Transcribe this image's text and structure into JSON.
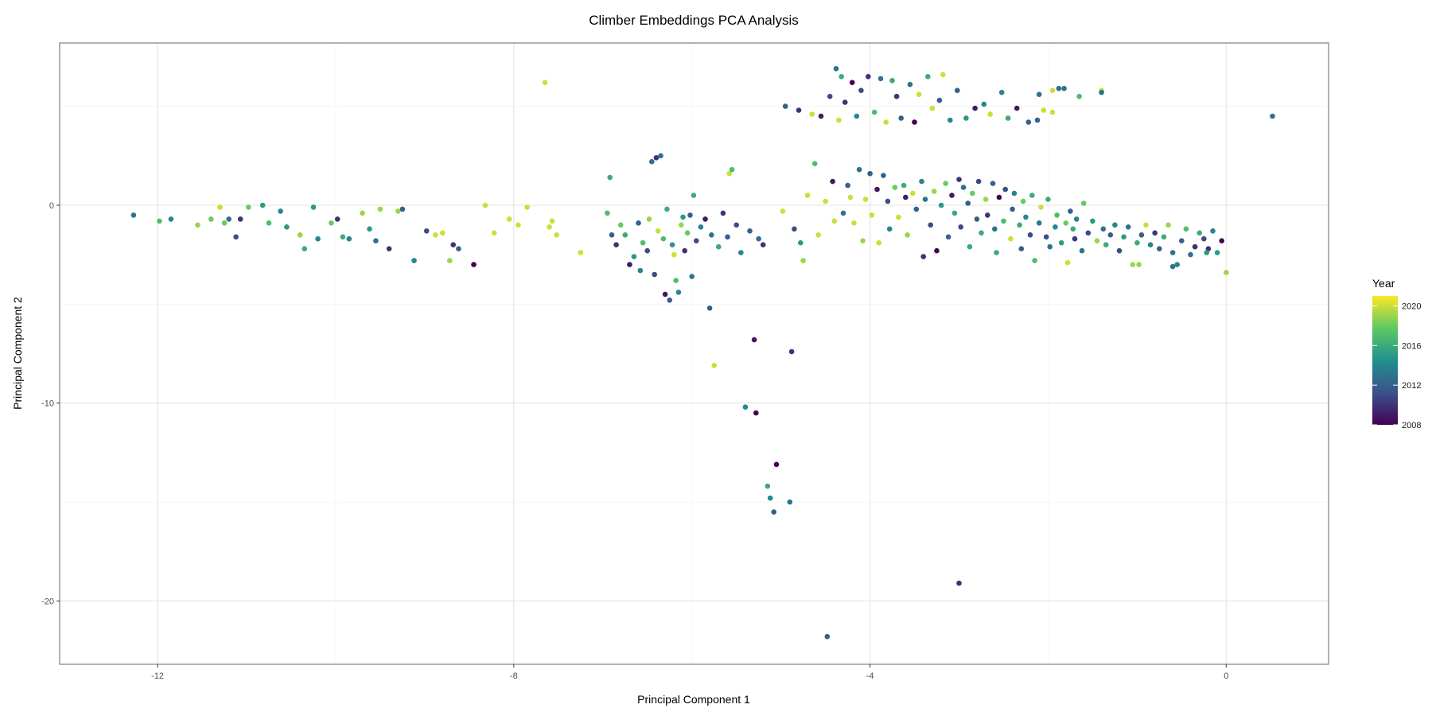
{
  "chart_data": {
    "type": "scatter",
    "title": "Climber Embeddings PCA Analysis",
    "xlabel": "Principal Component 1",
    "ylabel": "Principal Component 2",
    "xlim": [
      -13.1,
      1.15
    ],
    "ylim": [
      -23.2,
      8.2
    ],
    "x_ticks": [
      -12,
      -8,
      -4,
      0
    ],
    "y_ticks": [
      0,
      -10,
      -20
    ],
    "x_tick_labels": [
      "-12",
      "-8",
      "-4",
      "0"
    ],
    "y_tick_labels": [
      "0",
      "-10",
      "-20"
    ],
    "grid": true,
    "legend": {
      "title": "Year",
      "position": "right",
      "type": "colorbar",
      "colormap": "viridis",
      "range": [
        2008,
        2021
      ],
      "breaks": [
        2008,
        2012,
        2016,
        2020
      ],
      "labels": [
        "2008",
        "2012",
        "2016",
        "2020"
      ],
      "colors": [
        "#440154",
        "#3b528b",
        "#21908d",
        "#5dc963",
        "#fde725"
      ]
    },
    "points": [
      [
        -12.27,
        -0.5,
        2013
      ],
      [
        -11.98,
        -0.8,
        2017
      ],
      [
        -11.85,
        -0.7,
        2014
      ],
      [
        -11.55,
        -1.0,
        2019
      ],
      [
        -11.4,
        -0.7,
        2018
      ],
      [
        -11.3,
        -0.1,
        2020
      ],
      [
        -11.25,
        -0.9,
        2018
      ],
      [
        -11.2,
        -0.7,
        2013
      ],
      [
        -11.12,
        -1.6,
        2011
      ],
      [
        -11.07,
        -0.7,
        2010
      ],
      [
        -10.98,
        -0.1,
        2018
      ],
      [
        -10.82,
        0.0,
        2015
      ],
      [
        -10.75,
        -0.9,
        2017
      ],
      [
        -10.62,
        -0.3,
        2014
      ],
      [
        -10.55,
        -1.1,
        2015
      ],
      [
        -10.4,
        -1.5,
        2019
      ],
      [
        -10.35,
        -2.2,
        2016
      ],
      [
        -10.25,
        -0.1,
        2015
      ],
      [
        -10.2,
        -1.7,
        2014
      ],
      [
        -10.05,
        -0.9,
        2018
      ],
      [
        -9.98,
        -0.7,
        2010
      ],
      [
        -9.92,
        -1.6,
        2016
      ],
      [
        -9.85,
        -1.7,
        2014
      ],
      [
        -9.7,
        -0.4,
        2019
      ],
      [
        -9.62,
        -1.2,
        2015
      ],
      [
        -9.55,
        -1.8,
        2013
      ],
      [
        -9.5,
        -0.2,
        2019
      ],
      [
        -9.4,
        -2.2,
        2010
      ],
      [
        -9.3,
        -0.3,
        2019
      ],
      [
        -9.25,
        -0.2,
        2012
      ],
      [
        -9.12,
        -2.8,
        2014
      ],
      [
        -8.98,
        -1.3,
        2011
      ],
      [
        -8.88,
        -1.5,
        2020
      ],
      [
        -8.8,
        -1.4,
        2020
      ],
      [
        -8.72,
        -2.8,
        2019
      ],
      [
        -8.68,
        -2.0,
        2010
      ],
      [
        -8.62,
        -2.2,
        2012
      ],
      [
        -8.45,
        -3.0,
        2008
      ],
      [
        -8.32,
        0.0,
        2020
      ],
      [
        -8.22,
        -1.4,
        2020
      ],
      [
        -8.05,
        -0.7,
        2020
      ],
      [
        -7.95,
        -1.0,
        2020
      ],
      [
        -7.85,
        -0.1,
        2020
      ],
      [
        -7.65,
        6.2,
        2020
      ],
      [
        -7.6,
        -1.1,
        2020
      ],
      [
        -7.57,
        -0.8,
        2020
      ],
      [
        -7.52,
        -1.5,
        2020
      ],
      [
        -7.25,
        -2.4,
        2020
      ],
      [
        -6.95,
        -0.4,
        2017
      ],
      [
        -6.92,
        1.4,
        2016
      ],
      [
        -6.9,
        -1.5,
        2012
      ],
      [
        -6.85,
        -2.0,
        2010
      ],
      [
        -6.8,
        -1.0,
        2018
      ],
      [
        -6.75,
        -1.5,
        2016
      ],
      [
        -6.7,
        -3.0,
        2009
      ],
      [
        -6.65,
        -2.6,
        2015
      ],
      [
        -6.6,
        -0.9,
        2012
      ],
      [
        -6.58,
        -3.3,
        2014
      ],
      [
        -6.55,
        -1.9,
        2017
      ],
      [
        -6.5,
        -2.3,
        2011
      ],
      [
        -6.48,
        -0.7,
        2019
      ],
      [
        -6.45,
        2.2,
        2013
      ],
      [
        -6.42,
        -3.5,
        2011
      ],
      [
        -6.4,
        2.4,
        2010
      ],
      [
        -6.38,
        -1.3,
        2020
      ],
      [
        -6.35,
        2.5,
        2013
      ],
      [
        -6.32,
        -1.7,
        2017
      ],
      [
        -6.3,
        -4.5,
        2009
      ],
      [
        -6.28,
        -0.2,
        2016
      ],
      [
        -6.25,
        -4.8,
        2012
      ],
      [
        -6.22,
        -2.0,
        2015
      ],
      [
        -6.2,
        -2.5,
        2020
      ],
      [
        -6.18,
        -3.8,
        2017
      ],
      [
        -6.15,
        -4.4,
        2014
      ],
      [
        -6.12,
        -1.0,
        2019
      ],
      [
        -6.1,
        -0.6,
        2015
      ],
      [
        -6.08,
        -2.3,
        2010
      ],
      [
        -6.05,
        -1.4,
        2018
      ],
      [
        -6.02,
        -0.5,
        2012
      ],
      [
        -6.0,
        -3.6,
        2013
      ],
      [
        -5.98,
        0.5,
        2016
      ],
      [
        -5.95,
        -1.8,
        2011
      ],
      [
        -5.9,
        -1.1,
        2014
      ],
      [
        -5.85,
        -0.7,
        2009
      ],
      [
        -5.8,
        -5.2,
        2012
      ],
      [
        -5.78,
        -1.5,
        2013
      ],
      [
        -5.75,
        -8.1,
        2020
      ],
      [
        -5.7,
        -2.1,
        2016
      ],
      [
        -5.65,
        -0.4,
        2010
      ],
      [
        -5.6,
        -1.6,
        2012
      ],
      [
        -5.58,
        1.6,
        2020
      ],
      [
        -5.55,
        1.8,
        2017
      ],
      [
        -5.5,
        -1.0,
        2011
      ],
      [
        -5.45,
        -2.4,
        2014
      ],
      [
        -5.4,
        -10.2,
        2014
      ],
      [
        -5.35,
        -1.3,
        2012
      ],
      [
        -5.3,
        -6.8,
        2009
      ],
      [
        -5.28,
        -10.5,
        2008
      ],
      [
        -5.25,
        -1.7,
        2013
      ],
      [
        -5.2,
        -2.0,
        2010
      ],
      [
        -5.15,
        -14.2,
        2016
      ],
      [
        -5.12,
        -14.8,
        2014
      ],
      [
        -5.08,
        -15.5,
        2012
      ],
      [
        -5.05,
        -13.1,
        2008
      ],
      [
        -4.98,
        -0.3,
        2020
      ],
      [
        -4.95,
        5.0,
        2012
      ],
      [
        -4.9,
        -15.0,
        2013
      ],
      [
        -4.88,
        -7.4,
        2010
      ],
      [
        -4.85,
        -1.2,
        2011
      ],
      [
        -4.8,
        4.8,
        2010
      ],
      [
        -4.78,
        -1.9,
        2015
      ],
      [
        -4.75,
        -2.8,
        2019
      ],
      [
        -4.7,
        0.5,
        2020
      ],
      [
        -4.65,
        4.6,
        2020
      ],
      [
        -4.62,
        2.1,
        2017
      ],
      [
        -4.58,
        -1.5,
        2020
      ],
      [
        -4.55,
        4.5,
        2009
      ],
      [
        -4.5,
        0.2,
        2020
      ],
      [
        -4.48,
        -21.8,
        2012
      ],
      [
        -4.45,
        5.5,
        2011
      ],
      [
        -4.42,
        1.2,
        2009
      ],
      [
        -4.4,
        -0.8,
        2020
      ],
      [
        -4.38,
        6.9,
        2013
      ],
      [
        -4.35,
        4.3,
        2020
      ],
      [
        -4.32,
        6.5,
        2016
      ],
      [
        -4.3,
        -0.4,
        2013
      ],
      [
        -4.28,
        5.2,
        2010
      ],
      [
        -4.25,
        1.0,
        2012
      ],
      [
        -4.22,
        0.4,
        2020
      ],
      [
        -4.2,
        6.2,
        2008
      ],
      [
        -4.18,
        -0.9,
        2020
      ],
      [
        -4.15,
        4.5,
        2014
      ],
      [
        -4.12,
        1.8,
        2013
      ],
      [
        -4.1,
        5.8,
        2011
      ],
      [
        -4.08,
        -1.8,
        2019
      ],
      [
        -4.05,
        0.3,
        2020
      ],
      [
        -4.02,
        6.5,
        2010
      ],
      [
        -4.0,
        1.6,
        2012
      ],
      [
        -3.98,
        -0.5,
        2020
      ],
      [
        -3.95,
        4.7,
        2017
      ],
      [
        -3.92,
        0.8,
        2009
      ],
      [
        -3.9,
        -1.9,
        2020
      ],
      [
        -3.88,
        6.4,
        2013
      ],
      [
        -3.85,
        1.5,
        2012
      ],
      [
        -3.82,
        4.2,
        2020
      ],
      [
        -3.8,
        0.2,
        2011
      ],
      [
        -3.78,
        -1.2,
        2014
      ],
      [
        -3.75,
        6.3,
        2016
      ],
      [
        -3.72,
        0.9,
        2018
      ],
      [
        -3.7,
        5.5,
        2010
      ],
      [
        -3.68,
        -0.6,
        2020
      ],
      [
        -3.65,
        4.4,
        2012
      ],
      [
        -3.62,
        1.0,
        2016
      ],
      [
        -3.6,
        0.4,
        2009
      ],
      [
        -3.58,
        -1.5,
        2019
      ],
      [
        -3.55,
        6.1,
        2013
      ],
      [
        -3.52,
        0.6,
        2020
      ],
      [
        -3.5,
        4.2,
        2008
      ],
      [
        -3.48,
        -0.2,
        2012
      ],
      [
        -3.45,
        5.6,
        2020
      ],
      [
        -3.42,
        1.2,
        2014
      ],
      [
        -3.4,
        -2.6,
        2010
      ],
      [
        -3.38,
        0.3,
        2013
      ],
      [
        -3.35,
        6.5,
        2016
      ],
      [
        -3.32,
        -1.0,
        2011
      ],
      [
        -3.3,
        4.9,
        2020
      ],
      [
        -3.28,
        0.7,
        2019
      ],
      [
        -3.25,
        -2.3,
        2008
      ],
      [
        -3.22,
        5.3,
        2012
      ],
      [
        -3.2,
        0.0,
        2015
      ],
      [
        -3.18,
        6.6,
        2020
      ],
      [
        -3.15,
        1.1,
        2018
      ],
      [
        -3.12,
        -1.6,
        2012
      ],
      [
        -3.1,
        4.3,
        2014
      ],
      [
        -3.08,
        0.5,
        2009
      ],
      [
        -3.05,
        -0.4,
        2016
      ],
      [
        -3.02,
        5.8,
        2012
      ],
      [
        -3.0,
        1.3,
        2010
      ],
      [
        -2.98,
        -1.1,
        2011
      ],
      [
        -2.95,
        0.9,
        2013
      ],
      [
        -2.92,
        4.4,
        2015
      ],
      [
        -2.9,
        0.1,
        2012
      ],
      [
        -2.88,
        -2.1,
        2016
      ],
      [
        -2.85,
        0.6,
        2018
      ],
      [
        -2.82,
        4.9,
        2009
      ],
      [
        -2.8,
        -0.7,
        2012
      ],
      [
        -2.78,
        1.2,
        2011
      ],
      [
        -2.75,
        -1.4,
        2016
      ],
      [
        -2.72,
        5.1,
        2014
      ],
      [
        -2.7,
        0.3,
        2019
      ],
      [
        -2.68,
        -0.5,
        2010
      ],
      [
        -2.65,
        4.6,
        2020
      ],
      [
        -2.62,
        1.1,
        2012
      ],
      [
        -2.6,
        -1.2,
        2013
      ],
      [
        -2.58,
        -2.4,
        2016
      ],
      [
        -2.55,
        0.4,
        2008
      ],
      [
        -2.52,
        5.7,
        2014
      ],
      [
        -2.5,
        -0.8,
        2017
      ],
      [
        -2.48,
        0.8,
        2011
      ],
      [
        -2.45,
        4.4,
        2016
      ],
      [
        -2.42,
        -1.7,
        2020
      ],
      [
        -2.4,
        -0.2,
        2012
      ],
      [
        -2.38,
        0.6,
        2014
      ],
      [
        -2.35,
        4.9,
        2009
      ],
      [
        -2.32,
        -1.0,
        2016
      ],
      [
        -2.3,
        -2.2,
        2012
      ],
      [
        -2.28,
        0.2,
        2018
      ],
      [
        -2.25,
        -0.6,
        2014
      ],
      [
        -2.22,
        4.2,
        2012
      ],
      [
        -2.2,
        -1.5,
        2011
      ],
      [
        -2.18,
        0.5,
        2016
      ],
      [
        -2.15,
        -2.8,
        2017
      ],
      [
        -2.12,
        4.3,
        2012
      ],
      [
        -2.1,
        -0.9,
        2013
      ],
      [
        -2.08,
        -0.1,
        2020
      ],
      [
        -2.05,
        4.8,
        2020
      ],
      [
        -2.02,
        -1.6,
        2011
      ],
      [
        -2.0,
        0.3,
        2016
      ],
      [
        -1.98,
        -2.1,
        2013
      ],
      [
        -1.95,
        4.7,
        2020
      ],
      [
        -1.92,
        -1.1,
        2014
      ],
      [
        -1.9,
        -0.5,
        2017
      ],
      [
        -1.88,
        5.9,
        2013
      ],
      [
        -1.85,
        -1.9,
        2015
      ],
      [
        -1.82,
        5.9,
        2013
      ],
      [
        -1.8,
        -0.9,
        2018
      ],
      [
        -1.78,
        -2.9,
        2020
      ],
      [
        -1.75,
        -0.3,
        2012
      ],
      [
        -1.72,
        -1.2,
        2016
      ],
      [
        -1.7,
        -1.7,
        2010
      ],
      [
        -1.68,
        -0.7,
        2014
      ],
      [
        -1.65,
        5.5,
        2017
      ],
      [
        -1.62,
        -2.3,
        2013
      ],
      [
        -1.6,
        0.1,
        2018
      ],
      [
        -1.55,
        -1.4,
        2011
      ],
      [
        -1.5,
        -0.8,
        2015
      ],
      [
        -1.45,
        -1.8,
        2019
      ],
      [
        -1.4,
        5.8,
        2020
      ],
      [
        -1.38,
        -1.2,
        2013
      ],
      [
        -1.35,
        -2.0,
        2016
      ],
      [
        -1.3,
        -1.5,
        2012
      ],
      [
        -1.25,
        -1.0,
        2014
      ],
      [
        -1.2,
        -2.3,
        2011
      ],
      [
        -1.15,
        -1.6,
        2015
      ],
      [
        -1.1,
        -1.1,
        2013
      ],
      [
        -1.05,
        -3.0,
        2019
      ],
      [
        -1.0,
        -1.9,
        2016
      ],
      [
        -0.98,
        -3.0,
        2019
      ],
      [
        -0.95,
        -1.5,
        2012
      ],
      [
        -0.9,
        -1.0,
        2020
      ],
      [
        -0.85,
        -2.0,
        2014
      ],
      [
        -0.8,
        -1.4,
        2010
      ],
      [
        -0.75,
        -2.2,
        2012
      ],
      [
        -0.7,
        -1.6,
        2016
      ],
      [
        -0.65,
        -1.0,
        2019
      ],
      [
        -0.6,
        -2.4,
        2013
      ],
      [
        -0.55,
        -3.0,
        2014
      ],
      [
        -0.5,
        -1.8,
        2012
      ],
      [
        -0.45,
        -1.2,
        2017
      ],
      [
        -0.4,
        -2.5,
        2013
      ],
      [
        -0.35,
        -2.1,
        2013
      ],
      [
        -0.3,
        -1.4,
        2016
      ],
      [
        -0.25,
        -1.7,
        2011
      ],
      [
        -0.2,
        -2.2,
        2010
      ],
      [
        -0.15,
        -1.3,
        2014
      ],
      [
        -0.1,
        -2.4,
        2015
      ],
      [
        -0.05,
        -1.8,
        2008
      ],
      [
        0.0,
        -3.4,
        2019
      ],
      [
        -0.35,
        -2.1,
        2010
      ],
      [
        -0.6,
        -3.1,
        2013
      ],
      [
        -0.22,
        -2.4,
        2015
      ],
      [
        0.52,
        4.5,
        2013
      ],
      [
        -1.4,
        5.7,
        2013
      ],
      [
        -2.1,
        5.6,
        2013
      ],
      [
        -1.95,
        5.8,
        2020
      ],
      [
        -3.0,
        -19.1,
        2010
      ]
    ]
  }
}
